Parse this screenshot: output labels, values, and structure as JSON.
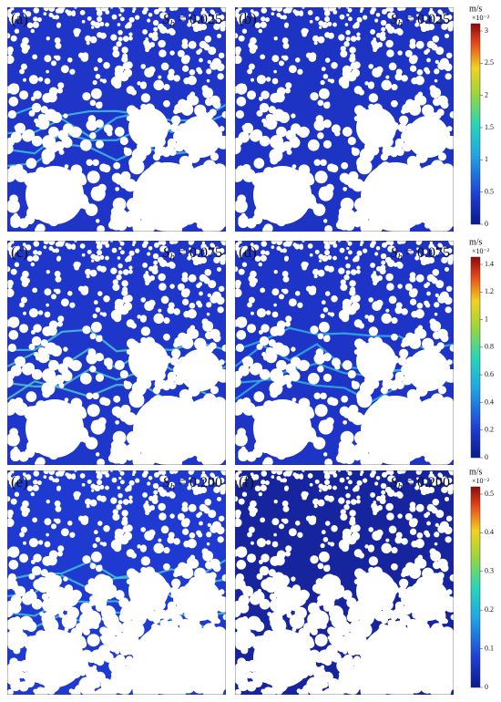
{
  "figure": {
    "panels": [
      {
        "label": "(a)",
        "symbol": "S",
        "subscript": "h",
        "value": "= 0.025"
      },
      {
        "label": "(b)",
        "symbol": "S",
        "subscript": "h",
        "value": "= 0.025"
      },
      {
        "label": "(c)",
        "symbol": "S",
        "subscript": "h",
        "value": "= 0.075"
      },
      {
        "label": "(d)",
        "symbol": "S",
        "subscript": "h",
        "value": "= 0.075"
      },
      {
        "label": "(e)",
        "symbol": "S",
        "subscript": "h",
        "value": "= 0.200"
      },
      {
        "label": "(f)",
        "symbol": "S",
        "subscript": "h",
        "value": "= 0.200"
      }
    ],
    "colorbars": [
      {
        "unit": "m/s",
        "scale": "×10⁻²",
        "ticks": [
          "3",
          "2.5",
          "2",
          "1.5",
          "1",
          "0.5",
          "0"
        ]
      },
      {
        "unit": "m/s",
        "scale": "×10⁻²",
        "ticks": [
          "1.4",
          "1.2",
          "1",
          "0.8",
          "0.6",
          "0.4",
          "0.2",
          "0"
        ]
      },
      {
        "unit": "m/s",
        "scale": "×10⁻²",
        "ticks": [
          "0.5",
          "0.4",
          "0.3",
          "0.2",
          "0.1",
          "0"
        ]
      }
    ]
  }
}
